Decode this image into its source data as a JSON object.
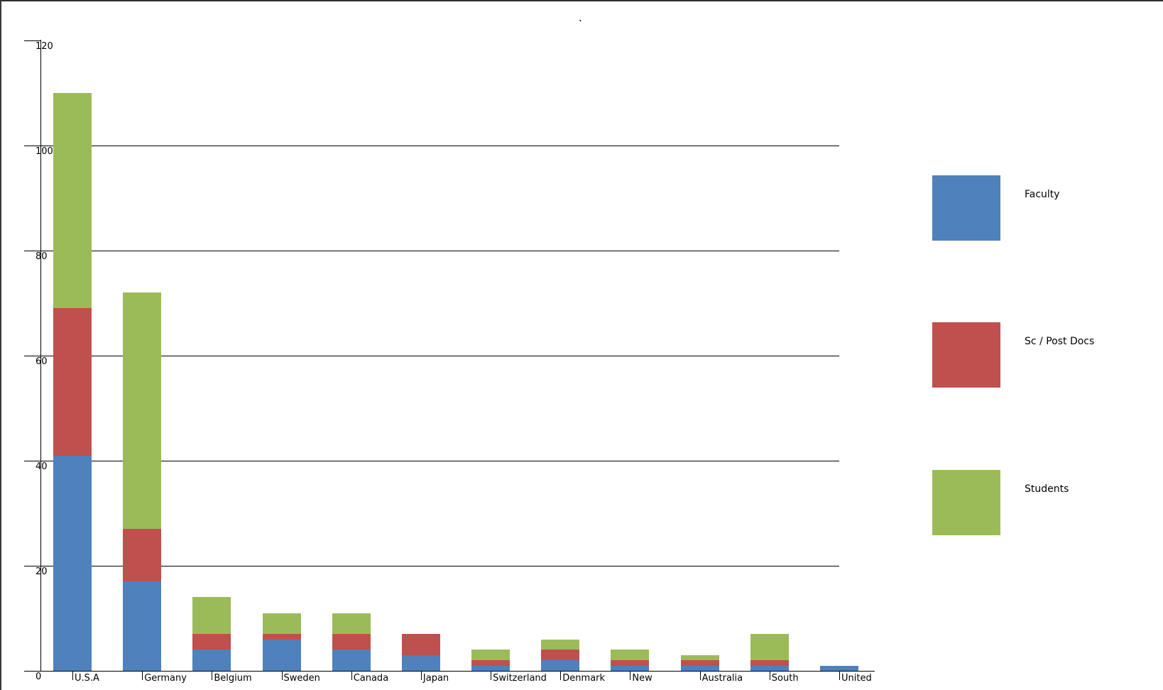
{
  "window": {
    "title": "."
  },
  "chart_data": {
    "type": "bar",
    "stacked": true,
    "title": ".",
    "categories": [
      "U.S.A",
      "Germany",
      "Belgium",
      "Sweden",
      "Canada",
      "Japan",
      "Switzerland",
      "Denmark",
      "New",
      "Australia",
      "South",
      "United"
    ],
    "series": [
      {
        "name": "Faculty",
        "color": "#4F81BD",
        "values": [
          41,
          17,
          4,
          6,
          4,
          3,
          1,
          2,
          1,
          1,
          1,
          1
        ]
      },
      {
        "name": "Sc / Post Docs",
        "color": "#C0504D",
        "values": [
          28,
          10,
          3,
          1,
          3,
          4,
          1,
          2,
          1,
          1,
          1,
          0
        ]
      },
      {
        "name": "Students",
        "color": "#9BBB59",
        "values": [
          41,
          45,
          7,
          4,
          4,
          0,
          2,
          2,
          2,
          1,
          5,
          0
        ]
      }
    ],
    "totals": [
      110,
      72,
      14,
      11,
      11,
      7,
      4,
      6,
      4,
      3,
      7,
      1
    ],
    "xlabel": "",
    "ylabel": "",
    "ylim": [
      0,
      120
    ],
    "ytick_step": 20,
    "ytick_labels": [
      "0",
      "20",
      "40",
      "60",
      "80",
      "100",
      "120"
    ],
    "grid": true,
    "gridlines_at": [
      20,
      40,
      60,
      80,
      100
    ],
    "legend_position": "right",
    "legend_items": [
      "Faculty",
      "Sc / Post Docs",
      "Students"
    ]
  }
}
